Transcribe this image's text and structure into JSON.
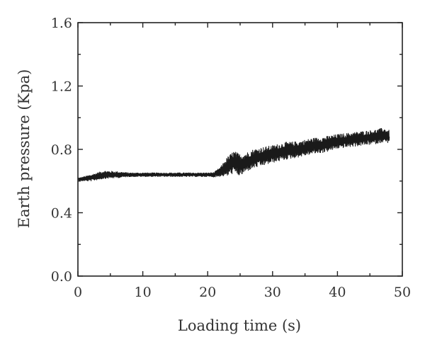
{
  "chart_data": {
    "type": "line",
    "xlabel": "Loading time (s)",
    "ylabel": "Earth pressure (Kpa)",
    "xlim": [
      0,
      50
    ],
    "ylim": [
      0.0,
      1.6
    ],
    "x_ticks": [
      0,
      10,
      20,
      30,
      40,
      50
    ],
    "x_tick_labels": [
      "0",
      "10",
      "20",
      "30",
      "40",
      "50"
    ],
    "y_ticks": [
      0.0,
      0.4,
      0.8,
      1.2,
      1.6
    ],
    "y_tick_labels": [
      "0.0",
      "0.4",
      "0.8",
      "1.2",
      "1.6"
    ],
    "grid": false,
    "legend": "none",
    "series": [
      {
        "color": "#1a1a1a",
        "x": [
          0,
          0,
          0.2,
          2,
          4,
          6,
          8,
          10,
          12,
          14,
          16,
          18,
          20,
          21,
          22,
          23,
          24,
          25,
          26,
          27,
          28,
          30,
          32,
          34,
          36,
          38,
          40,
          42,
          44,
          46,
          47,
          48
        ],
        "y": [
          0.0,
          0.62,
          0.61,
          0.62,
          0.64,
          0.64,
          0.64,
          0.64,
          0.64,
          0.64,
          0.64,
          0.64,
          0.64,
          0.64,
          0.66,
          0.69,
          0.72,
          0.7,
          0.72,
          0.74,
          0.75,
          0.77,
          0.79,
          0.8,
          0.82,
          0.83,
          0.85,
          0.86,
          0.87,
          0.88,
          0.89,
          0.88
        ],
        "noise_amplitude": [
          0,
          0,
          0.01,
          0.02,
          0.025,
          0.02,
          0.012,
          0.012,
          0.012,
          0.012,
          0.012,
          0.012,
          0.012,
          0.015,
          0.03,
          0.06,
          0.07,
          0.07,
          0.06,
          0.06,
          0.06,
          0.055,
          0.055,
          0.05,
          0.05,
          0.05,
          0.045,
          0.045,
          0.045,
          0.045,
          0.045,
          0.04
        ]
      }
    ]
  }
}
